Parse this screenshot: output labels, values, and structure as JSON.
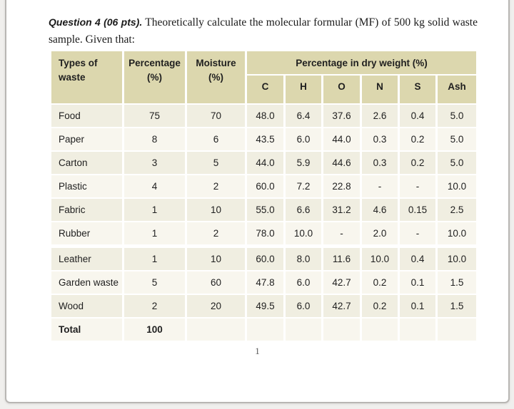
{
  "question": {
    "lead": "Question 4 (06 pts).",
    "line1_rest": "Theoretically calculate the molecular formular (MF) of 500 kg solid waste",
    "line2": "sample. Given that:"
  },
  "table": {
    "headers": {
      "types": "Types of waste",
      "percentage": "Percentage (%)",
      "moisture": "Moisture (%)",
      "group": "Percentage in dry weight (%)"
    },
    "sub": [
      "C",
      "H",
      "O",
      "N",
      "S",
      "Ash"
    ],
    "rows": [
      [
        "Food",
        "75",
        "70",
        "48.0",
        "6.4",
        "37.6",
        "2.6",
        "0.4",
        "5.0"
      ],
      [
        "Paper",
        "8",
        "6",
        "43.5",
        "6.0",
        "44.0",
        "0.3",
        "0.2",
        "5.0"
      ],
      [
        "Carton",
        "3",
        "5",
        "44.0",
        "5.9",
        "44.6",
        "0.3",
        "0.2",
        "5.0"
      ],
      [
        "Plastic",
        "4",
        "2",
        "60.0",
        "7.2",
        "22.8",
        "-",
        "-",
        "10.0"
      ],
      [
        "Fabric",
        "1",
        "10",
        "55.0",
        "6.6",
        "31.2",
        "4.6",
        "0.15",
        "2.5"
      ],
      [
        "Rubber",
        "1",
        "2",
        "78.0",
        "10.0",
        "-",
        "2.0",
        "-",
        "10.0"
      ],
      [
        "Leather",
        "1",
        "10",
        "60.0",
        "8.0",
        "11.6",
        "10.0",
        "0.4",
        "10.0"
      ],
      [
        "Garden waste",
        "5",
        "60",
        "47.8",
        "6.0",
        "42.7",
        "0.2",
        "0.1",
        "1.5"
      ],
      [
        "Wood",
        "2",
        "20",
        "49.5",
        "6.0",
        "42.7",
        "0.2",
        "0.1",
        "1.5"
      ],
      [
        "Total",
        "100",
        "",
        "",
        "",
        "",
        "",
        "",
        ""
      ]
    ]
  },
  "page_number": "1",
  "colors": {
    "header_bg": "#dcd7ae",
    "row_dark": "#f0eee1",
    "row_light": "#f8f6ee",
    "page_border": "#b8b6b3",
    "page_bg": "#ffffff",
    "canvas_bg": "#f0efed",
    "text": "#1f1f1f"
  }
}
